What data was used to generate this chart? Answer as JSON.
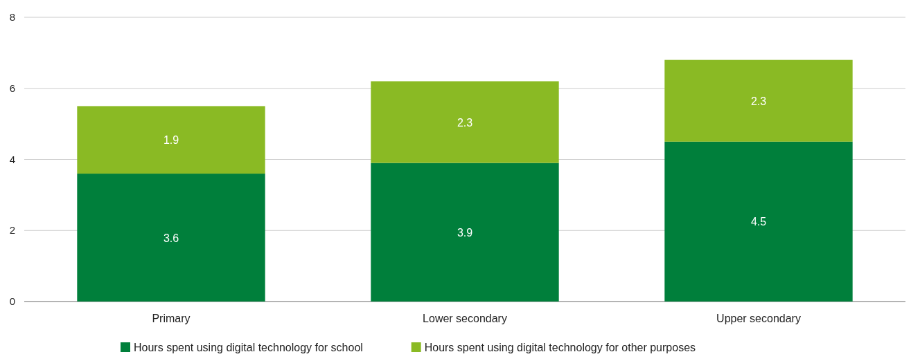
{
  "chart_data": {
    "type": "bar",
    "stacked": true,
    "categories": [
      "Primary",
      "Lower secondary",
      "Upper secondary"
    ],
    "series": [
      {
        "name": "Hours spent using digital technology for school",
        "color": "#007f3b",
        "values": [
          3.6,
          3.9,
          4.5
        ]
      },
      {
        "name": "Hours spent using digital technology for other purposes",
        "color": "#8aba24",
        "values": [
          1.9,
          2.3,
          2.3
        ]
      }
    ],
    "ylim": [
      0,
      8
    ],
    "yticks": [
      0,
      2,
      4,
      6,
      8
    ],
    "grid": "y",
    "data_labels": true,
    "legend": "bottom"
  }
}
